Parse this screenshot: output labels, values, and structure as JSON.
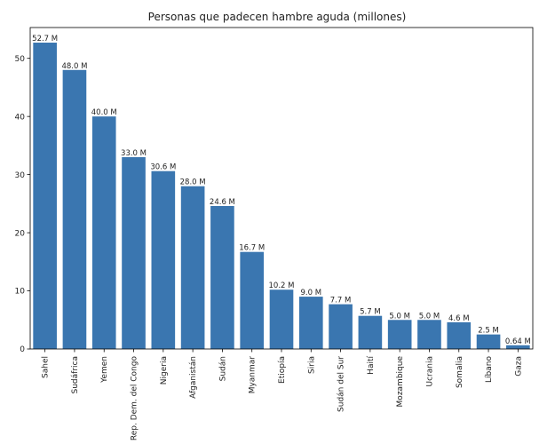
{
  "chart_data": {
    "type": "bar",
    "title": "Personas que padecen hambre aguda (millones)",
    "xlabel": "",
    "ylabel": "",
    "ylim": [
      0,
      55.3
    ],
    "yticks": [
      0,
      10,
      20,
      30,
      40,
      50
    ],
    "grid": false,
    "bar_color": "#3a76b0",
    "categories": [
      "Sahel",
      "Sudáfrica",
      "Yemen",
      "Rep. Dem. del Congo",
      "Nigeria",
      "Afganistán",
      "Sudán",
      "Myanmar",
      "Etiopía",
      "Siria",
      "Sudán del Sur",
      "Haití",
      "Mozambique",
      "Ucrania",
      "Somalia",
      "Líbano",
      "Gaza"
    ],
    "values": [
      52.7,
      48.0,
      40.0,
      33.0,
      30.6,
      28.0,
      24.6,
      16.7,
      10.2,
      9.0,
      7.7,
      5.7,
      5.0,
      5.0,
      4.6,
      2.5,
      0.64
    ],
    "data_labels": [
      "52.7 M",
      "48.0 M",
      "40.0 M",
      "33.0 M",
      "30.6 M",
      "28.0 M",
      "24.6 M",
      "16.7 M",
      "10.2 M",
      "9.0 M",
      "7.7 M",
      "5.7 M",
      "5.0 M",
      "5.0 M",
      "4.6 M",
      "2.5 M",
      "0.64 M"
    ]
  }
}
